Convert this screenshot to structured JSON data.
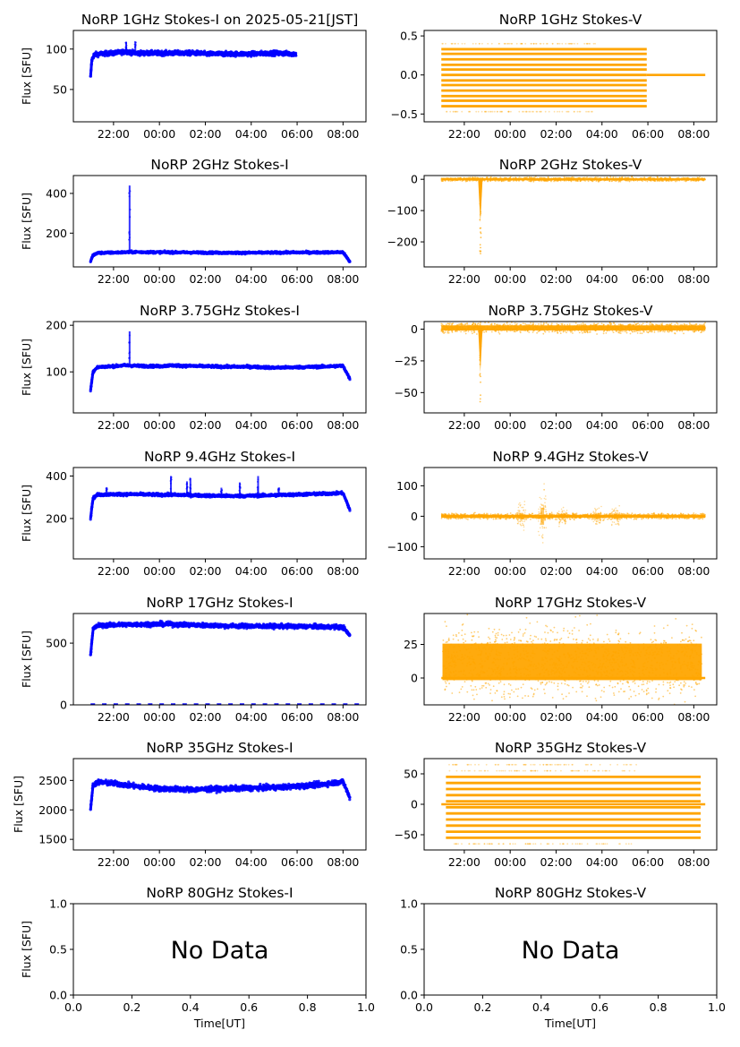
{
  "figure": {
    "width": 827,
    "height": 1169
  },
  "colors": {
    "stokes_i": "#0000ff",
    "stokes_v": "#ffa500",
    "axes": "#000000",
    "background": "#ffffff"
  },
  "chart_data": [
    {
      "type": "scatter",
      "title": "NoRP 1GHz Stokes-I on 2025-05-21[JST]",
      "ylabel": "Flux [SFU]",
      "xlabel": "",
      "series_color": "stokes_i",
      "x_ticks": [
        "22:00",
        "00:00",
        "02:00",
        "04:00",
        "06:00",
        "08:00"
      ],
      "y_ticks": [
        "50",
        "100"
      ],
      "y_tick_values": [
        50,
        100
      ],
      "ylim": [
        10,
        123
      ],
      "xlim_hours": [
        20.25,
        33.0
      ],
      "series": [
        {
          "x_hours": [
            21.0,
            21.05,
            21.15,
            21.4,
            22.0,
            22.3,
            22.6,
            22.7,
            23.0,
            24.0,
            25.0,
            25.7,
            26.0,
            27.0,
            28.0,
            29.0,
            29.95
          ],
          "y": [
            65,
            86,
            93,
            94,
            95,
            96,
            97,
            96,
            95,
            95,
            95,
            95,
            94,
            94,
            94,
            95,
            94
          ],
          "spread": 2.5
        }
      ],
      "spikes": [
        {
          "x": 22.55,
          "y": 109
        },
        {
          "x": 22.95,
          "y": 109
        }
      ],
      "grid": false
    },
    {
      "type": "scatter",
      "title": "NoRP 1GHz Stokes-V",
      "ylabel": "",
      "xlabel": "",
      "series_color": "stokes_v",
      "x_ticks": [
        "22:00",
        "00:00",
        "02:00",
        "04:00",
        "06:00",
        "08:00"
      ],
      "y_ticks": [
        "−0.5",
        "0.0",
        "0.5"
      ],
      "y_tick_values": [
        -0.5,
        0,
        0.5
      ],
      "ylim": [
        -0.6,
        0.57
      ],
      "xlim_hours": [
        20.25,
        33.0
      ],
      "quantized_levels": {
        "x_range": [
          21.0,
          29.95
        ],
        "levels": [
          -0.4,
          -0.33,
          -0.27,
          -0.2,
          -0.13,
          -0.07,
          0,
          0.07,
          0.13,
          0.2,
          0.27,
          0.33
        ]
      },
      "flat_segment": {
        "x_range": [
          29.95,
          32.5
        ],
        "y": 0
      },
      "outlier_levels": [
        -0.47,
        0.4
      ],
      "grid": false
    },
    {
      "type": "scatter",
      "title": "NoRP 2GHz Stokes-I",
      "ylabel": "Flux [SFU]",
      "xlabel": "",
      "series_color": "stokes_i",
      "x_ticks": [
        "22:00",
        "00:00",
        "02:00",
        "04:00",
        "06:00",
        "08:00"
      ],
      "y_ticks": [
        "200",
        "400"
      ],
      "y_tick_values": [
        200,
        400
      ],
      "ylim": [
        30,
        490
      ],
      "xlim_hours": [
        20.25,
        33.0
      ],
      "series": [
        {
          "x_hours": [
            21.0,
            21.1,
            21.3,
            22.0,
            22.6,
            23.0,
            24.0,
            25.0,
            26.0,
            27.0,
            28.0,
            29.0,
            30.0,
            31.0,
            32.0,
            32.3
          ],
          "y": [
            58,
            88,
            100,
            102,
            104,
            105,
            104,
            103,
            102,
            101,
            101,
            102,
            103,
            103,
            104,
            55
          ],
          "spread": 5
        }
      ],
      "spikes": [
        {
          "x": 22.7,
          "y": 440
        }
      ],
      "grid": false
    },
    {
      "type": "scatter",
      "title": "NoRP 2GHz Stokes-V",
      "ylabel": "",
      "xlabel": "",
      "series_color": "stokes_v",
      "x_ticks": [
        "22:00",
        "00:00",
        "02:00",
        "04:00",
        "06:00",
        "08:00"
      ],
      "y_ticks": [
        "−200",
        "−100",
        "0"
      ],
      "y_tick_values": [
        -200,
        -100,
        0
      ],
      "ylim": [
        -280,
        12
      ],
      "xlim_hours": [
        20.25,
        33.0
      ],
      "band": {
        "x_range": [
          21.0,
          32.5
        ],
        "center": 0,
        "half_width": 4
      },
      "dips": [
        {
          "x": 22.7,
          "y": -250
        }
      ],
      "grid": false
    },
    {
      "type": "scatter",
      "title": "NoRP 3.75GHz Stokes-I",
      "ylabel": "Flux [SFU]",
      "xlabel": "",
      "series_color": "stokes_i",
      "x_ticks": [
        "22:00",
        "00:00",
        "02:00",
        "04:00",
        "06:00",
        "08:00"
      ],
      "y_ticks": [
        "100",
        "200"
      ],
      "y_tick_values": [
        100,
        200
      ],
      "ylim": [
        12,
        208
      ],
      "xlim_hours": [
        20.25,
        33.0
      ],
      "series": [
        {
          "x_hours": [
            21.0,
            21.1,
            21.3,
            21.5,
            22.0,
            22.5,
            23.0,
            24.0,
            24.5,
            25.0,
            26.0,
            27.0,
            28.0,
            29.0,
            30.0,
            31.0,
            32.0,
            32.3
          ],
          "y": [
            60,
            100,
            110,
            111,
            112,
            114,
            113,
            112,
            114,
            113,
            112,
            111,
            111,
            109,
            110,
            111,
            113,
            85
          ],
          "spread": 2.5
        }
      ],
      "spikes": [
        {
          "x": 22.7,
          "y": 187
        }
      ],
      "grid": false
    },
    {
      "type": "scatter",
      "title": "NoRP 3.75GHz Stokes-V",
      "ylabel": "",
      "xlabel": "",
      "series_color": "stokes_v",
      "x_ticks": [
        "22:00",
        "00:00",
        "02:00",
        "04:00",
        "06:00",
        "08:00"
      ],
      "y_ticks": [
        "−50",
        "−25",
        "0"
      ],
      "y_tick_values": [
        -50,
        -25,
        0
      ],
      "ylim": [
        -66,
        6
      ],
      "xlim_hours": [
        20.25,
        33.0
      ],
      "band": {
        "x_range": [
          21.0,
          32.5
        ],
        "center": 1,
        "half_width": 2.5
      },
      "dips": [
        {
          "x": 22.7,
          "y": -62
        }
      ],
      "grid": false
    },
    {
      "type": "scatter",
      "title": "NoRP 9.4GHz Stokes-I",
      "ylabel": "Flux [SFU]",
      "xlabel": "",
      "series_color": "stokes_i",
      "x_ticks": [
        "22:00",
        "00:00",
        "02:00",
        "04:00",
        "06:00",
        "08:00"
      ],
      "y_ticks": [
        "200",
        "400"
      ],
      "y_tick_values": [
        200,
        400
      ],
      "ylim": [
        10,
        440
      ],
      "xlim_hours": [
        20.25,
        33.0
      ],
      "series": [
        {
          "x_hours": [
            21.0,
            21.1,
            21.3,
            22.0,
            23.0,
            24.0,
            25.0,
            26.0,
            27.0,
            28.0,
            29.0,
            30.0,
            31.0,
            32.0,
            32.3
          ],
          "y": [
            200,
            295,
            312,
            314,
            314,
            312,
            311,
            308,
            306,
            307,
            310,
            313,
            316,
            320,
            240
          ],
          "spread": 6
        }
      ],
      "spikes": [
        {
          "x": 21.7,
          "y": 345
        },
        {
          "x": 24.5,
          "y": 400
        },
        {
          "x": 25.2,
          "y": 375
        },
        {
          "x": 25.35,
          "y": 390
        },
        {
          "x": 26.7,
          "y": 345
        },
        {
          "x": 27.5,
          "y": 370
        },
        {
          "x": 28.3,
          "y": 400
        },
        {
          "x": 29.2,
          "y": 345
        }
      ],
      "grid": false
    },
    {
      "type": "scatter",
      "title": "NoRP 9.4GHz Stokes-V",
      "ylabel": "",
      "xlabel": "",
      "series_color": "stokes_v",
      "x_ticks": [
        "22:00",
        "00:00",
        "02:00",
        "04:00",
        "06:00",
        "08:00"
      ],
      "y_ticks": [
        "−100",
        "0",
        "100"
      ],
      "y_tick_values": [
        -100,
        0,
        100
      ],
      "ylim": [
        -140,
        160
      ],
      "xlim_hours": [
        20.25,
        33.0
      ],
      "band": {
        "x_range": [
          21.0,
          32.5
        ],
        "center": 0,
        "half_width": 6
      },
      "bursts": [
        {
          "x": 24.5,
          "amp": 55
        },
        {
          "x": 25.4,
          "amp": 140
        },
        {
          "x": 26.3,
          "amp": 35
        },
        {
          "x": 27.8,
          "amp": 40
        },
        {
          "x": 28.6,
          "amp": 45
        }
      ],
      "grid": false
    },
    {
      "type": "scatter",
      "title": "NoRP 17GHz Stokes-I",
      "ylabel": "Flux [SFU]",
      "xlabel": "",
      "series_color": "stokes_i",
      "x_ticks": [
        "22:00",
        "00:00",
        "02:00",
        "04:00",
        "06:00",
        "08:00"
      ],
      "y_ticks": [
        "0",
        "500"
      ],
      "y_tick_values": [
        0,
        500
      ],
      "ylim": [
        0,
        740
      ],
      "xlim_hours": [
        20.25,
        33.0
      ],
      "series": [
        {
          "x_hours": [
            21.0,
            21.1,
            21.3,
            22.0,
            23.0,
            24.0,
            25.0,
            26.0,
            27.0,
            28.0,
            29.0,
            30.0,
            31.0,
            32.0,
            32.3
          ],
          "y": [
            400,
            610,
            642,
            648,
            652,
            655,
            650,
            645,
            640,
            638,
            637,
            636,
            634,
            630,
            560
          ],
          "spread": 16
        }
      ],
      "zero_points": {
        "x_range": [
          21.0,
          32.5
        ],
        "y": 5
      },
      "grid": false
    },
    {
      "type": "scatter",
      "title": "NoRP 17GHz Stokes-V",
      "ylabel": "",
      "xlabel": "",
      "series_color": "stokes_v",
      "x_ticks": [
        "22:00",
        "00:00",
        "02:00",
        "04:00",
        "06:00",
        "08:00"
      ],
      "y_ticks": [
        "0",
        "25"
      ],
      "y_tick_values": [
        0,
        25
      ],
      "ylim": [
        -20,
        48
      ],
      "xlim_hours": [
        20.25,
        33.0
      ],
      "band": {
        "x_range": [
          21.05,
          32.35
        ],
        "center": 12,
        "half_width": 17
      },
      "flat_segment": {
        "x_range": [
          21.0,
          32.5
        ],
        "y": 0
      },
      "grid": false
    },
    {
      "type": "scatter",
      "title": "NoRP 35GHz Stokes-I",
      "ylabel": "Flux [SFU]",
      "xlabel": "",
      "series_color": "stokes_i",
      "x_ticks": [
        "22:00",
        "00:00",
        "02:00",
        "04:00",
        "06:00",
        "08:00"
      ],
      "y_ticks": [
        "1500",
        "2000",
        "2500"
      ],
      "y_tick_values": [
        1500,
        2000,
        2500
      ],
      "ylim": [
        1320,
        2870
      ],
      "xlim_hours": [
        20.25,
        33.0
      ],
      "series": [
        {
          "x_hours": [
            21.0,
            21.1,
            21.3,
            22.0,
            23.0,
            24.0,
            25.0,
            25.5,
            26.0,
            27.0,
            28.0,
            29.0,
            30.0,
            31.0,
            32.0,
            32.3
          ],
          "y": [
            2000,
            2420,
            2470,
            2450,
            2400,
            2360,
            2350,
            2345,
            2350,
            2360,
            2370,
            2380,
            2400,
            2430,
            2480,
            2200
          ],
          "spread": 40
        }
      ],
      "grid": false
    },
    {
      "type": "scatter",
      "title": "NoRP 35GHz Stokes-V",
      "ylabel": "",
      "xlabel": "",
      "series_color": "stokes_v",
      "x_ticks": [
        "22:00",
        "00:00",
        "02:00",
        "04:00",
        "06:00",
        "08:00"
      ],
      "y_ticks": [
        "−50",
        "0",
        "50"
      ],
      "y_tick_values": [
        -50,
        0,
        50
      ],
      "ylim": [
        -75,
        75
      ],
      "xlim_hours": [
        20.25,
        33.0
      ],
      "quantized_levels": {
        "x_range": [
          21.2,
          32.3
        ],
        "levels": [
          -55,
          -45,
          -35,
          -25,
          -15,
          -5,
          5,
          15,
          25,
          35,
          45
        ]
      },
      "flat_segment": {
        "x_range": [
          21.0,
          32.5
        ],
        "y": 0
      },
      "outlier_levels": [
        -65,
        55,
        65
      ],
      "grid": false
    },
    {
      "type": "empty",
      "title": "NoRP 80GHz Stokes-I",
      "ylabel": "Flux [SFU]",
      "xlabel": "Time[UT]",
      "annotation": "No Data",
      "x_ticks": [
        "0.0",
        "0.2",
        "0.4",
        "0.6",
        "0.8",
        "1.0"
      ],
      "y_ticks": [
        "0.0",
        "0.5",
        "1.0"
      ],
      "xlim": [
        0,
        1
      ],
      "ylim": [
        0,
        1
      ],
      "grid": false
    },
    {
      "type": "empty",
      "title": "NoRP 80GHz Stokes-V",
      "ylabel": "",
      "xlabel": "Time[UT]",
      "annotation": "No Data",
      "x_ticks": [
        "0.0",
        "0.2",
        "0.4",
        "0.6",
        "0.8",
        "1.0"
      ],
      "y_ticks": [
        "0.0",
        "0.5",
        "1.0"
      ],
      "xlim": [
        0,
        1
      ],
      "ylim": [
        0,
        1
      ],
      "grid": false
    }
  ]
}
